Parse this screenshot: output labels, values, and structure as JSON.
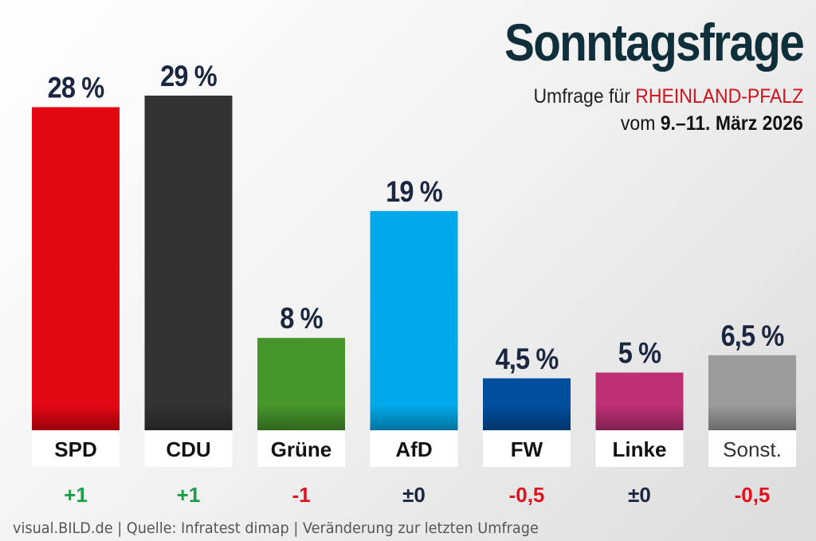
{
  "header": {
    "title": "Sonntagsfrage",
    "subtitle_prefix": "Umfrage für ",
    "subtitle_region": "RHEINLAND-PFALZ",
    "date_prefix": "vom ",
    "date_value": "9.–11. März 2026"
  },
  "footer": {
    "text": "visual.BILD.de | Quelle: Infratest dimap | Veränderung zur letzten Umfrage"
  },
  "chart_data": {
    "type": "bar",
    "title": "Sonntagsfrage",
    "categories": [
      "SPD",
      "CDU",
      "Grüne",
      "AfD",
      "FW",
      "Linke",
      "Sonst."
    ],
    "values": [
      28,
      29,
      8,
      19,
      4.5,
      5,
      6.5
    ],
    "value_labels": [
      "28 %",
      "29 %",
      "8 %",
      "19 %",
      "4,5 %",
      "5 %",
      "6,5 %"
    ],
    "changes": [
      "+1",
      "+1",
      "-1",
      "±0",
      "-0,5",
      "±0",
      "-0,5"
    ],
    "colors": [
      "#e30613",
      "#333333",
      "#46962b",
      "#00aaea",
      "#004f9f",
      "#be3075",
      "#9b9b9b"
    ],
    "change_colors": {
      "positive": "#1a9f48",
      "negative": "#e2101b",
      "neutral": "#1b2640"
    },
    "ylim": [
      0,
      29
    ],
    "grid": false,
    "legend": "none"
  }
}
